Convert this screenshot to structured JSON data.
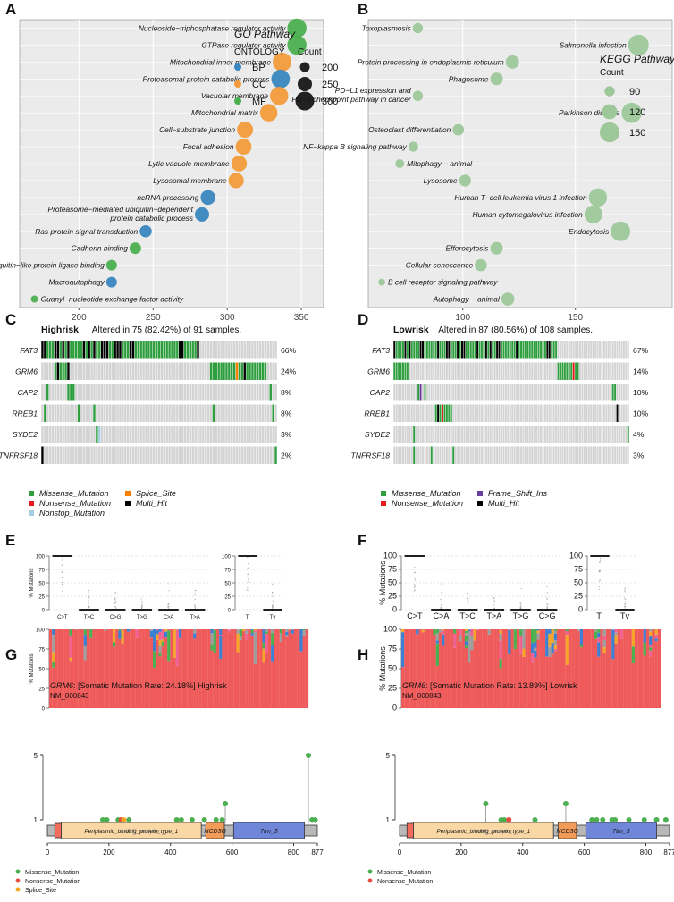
{
  "panel_labels": [
    "A",
    "B",
    "C",
    "D",
    "E",
    "F",
    "G",
    "H"
  ],
  "chart_data": [
    {
      "panel": "A",
      "type": "scatter",
      "xlim": [
        160,
        365
      ],
      "xticks": [
        200,
        250,
        300,
        350
      ],
      "legend_title": "GO Pathway",
      "ontology_title": "ONTOLOGY",
      "count_title": "Count",
      "ontology": [
        {
          "name": "BP",
          "color": "#3a87c0"
        },
        {
          "name": "CC",
          "color": "#f39b3a"
        },
        {
          "name": "MF",
          "color": "#4caf50"
        }
      ],
      "count_legend": [
        200,
        250,
        300
      ],
      "terms": [
        {
          "label": "Nucleoside−triphosphatase regulator activity",
          "x": 347,
          "count": 305,
          "ont": "MF"
        },
        {
          "label": "GTPase regulator activity",
          "x": 347,
          "count": 305,
          "ont": "MF"
        },
        {
          "label": "Mitochondrial inner membrane",
          "x": 337,
          "count": 300,
          "ont": "CC"
        },
        {
          "label": "Proteasomal protein catabolic process",
          "x": 336,
          "count": 298,
          "ont": "BP"
        },
        {
          "label": "Vacuolar membrane",
          "x": 335,
          "count": 295,
          "ont": "CC"
        },
        {
          "label": "Mitochondrial matrix",
          "x": 328,
          "count": 285,
          "ont": "CC"
        },
        {
          "label": "Cell−substrate junction",
          "x": 312,
          "count": 270,
          "ont": "CC"
        },
        {
          "label": "Focal adhesion",
          "x": 311,
          "count": 268,
          "ont": "CC"
        },
        {
          "label": "Lytic vacuole membrane",
          "x": 308,
          "count": 265,
          "ont": "CC"
        },
        {
          "label": "Lysosomal membrane",
          "x": 306,
          "count": 262,
          "ont": "CC"
        },
        {
          "label": "ncRNA processing",
          "x": 287,
          "count": 255,
          "ont": "BP"
        },
        {
          "label": "Proteasome−mediated ubiquitin−dependent",
          "label2": "protein catabolic process",
          "x": 283,
          "count": 250,
          "ont": "BP"
        },
        {
          "label": "Ras protein signal transduction",
          "x": 245,
          "count": 225,
          "ont": "BP"
        },
        {
          "label": "Cadherin binding",
          "x": 238,
          "count": 220,
          "ont": "MF"
        },
        {
          "label": "Ubiquitin−like protein ligase binding",
          "x": 222,
          "count": 210,
          "ont": "MF"
        },
        {
          "label": "Macroautophagy",
          "x": 222,
          "count": 210,
          "ont": "BP"
        },
        {
          "label": "Guanyl−nucleotide exchange factor activity",
          "x": 170,
          "count": 170,
          "ont": "MF"
        }
      ]
    },
    {
      "panel": "B",
      "type": "scatter",
      "xlim": [
        58,
        193
      ],
      "xticks": [
        100,
        150
      ],
      "legend_title": "KEGG Pathway",
      "count_title": "Count",
      "count_legend": [
        90,
        120,
        150
      ],
      "color": "#9dc89a",
      "terms": [
        {
          "label": "Toxoplasmosis",
          "x": 80,
          "count": 90
        },
        {
          "label": "Salmonella infection",
          "x": 178,
          "count": 155
        },
        {
          "label": "Protein processing in endoplasmic reticulum",
          "x": 122,
          "count": 110
        },
        {
          "label": "Phagosome",
          "x": 115,
          "count": 105
        },
        {
          "label": "PD−L1 expression and",
          "label2": "PD−1 checkpoint pathway in cancer",
          "x": 80,
          "count": 90
        },
        {
          "label": "Parkinson disease",
          "x": 175,
          "count": 152
        },
        {
          "label": "Osteoclast differentiation",
          "x": 98,
          "count": 98
        },
        {
          "label": "NF−kappa B signaling pathway",
          "x": 78,
          "count": 88
        },
        {
          "label": "Mitophagy − animal",
          "x": 72,
          "count": 82
        },
        {
          "label": "Lysosome",
          "x": 101,
          "count": 100
        },
        {
          "label": "Human T−cell leukemia virus 1 infection",
          "x": 160,
          "count": 140
        },
        {
          "label": "Human cytomegalovirus infection",
          "x": 158,
          "count": 138
        },
        {
          "label": "Endocytosis",
          "x": 170,
          "count": 148
        },
        {
          "label": "Efferocytosis",
          "x": 115,
          "count": 105
        },
        {
          "label": "Cellular senescence",
          "x": 108,
          "count": 102
        },
        {
          "label": "B cell receptor signaling pathway",
          "x": 64,
          "count": 70
        },
        {
          "label": "Autophagy − animal",
          "x": 120,
          "count": 108
        }
      ]
    },
    {
      "panel": "C",
      "type": "heatmap",
      "title_bold": "Highrisk",
      "title_rest": "Altered in 75 (82.42%) of 91 samples.",
      "n": 91,
      "genes": [
        "FAT3",
        "GRM6",
        "CAP2",
        "RREB1",
        "SYDE2",
        "TNFRSF18"
      ],
      "pcts": [
        "66%",
        "24%",
        "8%",
        "8%",
        "3%",
        "2%"
      ],
      "legend": [
        {
          "name": "Missense_Mutation",
          "color": "#2e9e3e"
        },
        {
          "name": "Nonsense_Mutation",
          "color": "#e41a1c"
        },
        {
          "name": "Nonstop_Mutation",
          "color": "#a6cee3"
        },
        {
          "name": "Splice_Site",
          "color": "#ff7f00"
        },
        {
          "name": "Multi_Hit",
          "color": "#000000"
        }
      ]
    },
    {
      "panel": "D",
      "type": "heatmap",
      "title_bold": "Lowrisk",
      "title_rest": "Altered in 87 (80.56%) of 108 samples.",
      "n": 108,
      "genes": [
        "FAT3",
        "GRM6",
        "CAP2",
        "RREB1",
        "SYDE2",
        "TNFRSF18"
      ],
      "pcts": [
        "67%",
        "14%",
        "10%",
        "10%",
        "4%",
        "3%"
      ],
      "legend": [
        {
          "name": "Missense_Mutation",
          "color": "#2e9e3e"
        },
        {
          "name": "Nonsense_Mutation",
          "color": "#e41a1c"
        },
        {
          "name": "Frame_Shift_Ins",
          "color": "#6a3d9a"
        },
        {
          "name": "Multi_Hit",
          "color": "#000000"
        }
      ]
    },
    {
      "panel": "E",
      "type": "box",
      "ylabel": "% Mutations",
      "yticks": [
        0,
        25,
        50,
        75,
        100
      ],
      "categories": [
        "C>T",
        "T>C",
        "C>G",
        "T>G",
        "C>A",
        "T>A"
      ],
      "medians": [
        100,
        0,
        0,
        0,
        0,
        0
      ],
      "titv": [
        "Ti",
        "Tv"
      ],
      "titv_medians": [
        100,
        0
      ]
    },
    {
      "panel": "F",
      "type": "box",
      "ylabel": "% Mutations",
      "yticks": [
        0,
        25,
        50,
        75,
        100
      ],
      "categories": [
        "C>T",
        "C>A",
        "T>C",
        "T>A",
        "T>G",
        "C>G"
      ],
      "medians": [
        100,
        0,
        0,
        0,
        0,
        0
      ],
      "titv": [
        "Ti",
        "Tv"
      ],
      "titv_medians": [
        100,
        0
      ]
    },
    {
      "panel": "G",
      "type": "lollipop",
      "gene": "GRM6",
      "title_rest": ": [Somatic Mutation Rate: 24.18%] Highrisk",
      "transcript": "NM_000843",
      "xlim": [
        0,
        877
      ],
      "xticks": [
        "0",
        "200",
        "400",
        "600",
        "800",
        "877"
      ],
      "yticks": [
        "1",
        "5"
      ],
      "domains": [
        {
          "name": "Periplasmic_binding_protein_type_1",
          "overlap": "ANF_receptor",
          "start": 45,
          "end": 500
        },
        {
          "name": "NCD3G",
          "start": 515,
          "end": 575
        },
        {
          "name": "7tm_3",
          "start": 605,
          "end": 835
        }
      ],
      "mutations": [
        {
          "pos": 180,
          "count": 1,
          "type": "Missense_Mutation"
        },
        {
          "pos": 193,
          "count": 1,
          "type": "Missense_Mutation"
        },
        {
          "pos": 230,
          "count": 1,
          "type": "Missense_Mutation"
        },
        {
          "pos": 240,
          "count": 1,
          "type": "Nonsense_Mutation"
        },
        {
          "pos": 248,
          "count": 1,
          "type": "Splice_Site"
        },
        {
          "pos": 265,
          "count": 1,
          "type": "Missense_Mutation"
        },
        {
          "pos": 420,
          "count": 1,
          "type": "Missense_Mutation"
        },
        {
          "pos": 435,
          "count": 1,
          "type": "Missense_Mutation"
        },
        {
          "pos": 470,
          "count": 1,
          "type": "Missense_Mutation"
        },
        {
          "pos": 510,
          "count": 1,
          "type": "Missense_Mutation"
        },
        {
          "pos": 548,
          "count": 1,
          "type": "Missense_Mutation"
        },
        {
          "pos": 568,
          "count": 1,
          "type": "Missense_Mutation"
        },
        {
          "pos": 578,
          "count": 2,
          "type": "Missense_Mutation"
        },
        {
          "pos": 848,
          "count": 5,
          "type": "Missense_Mutation"
        },
        {
          "pos": 860,
          "count": 1,
          "type": "Missense_Mutation"
        },
        {
          "pos": 870,
          "count": 1,
          "type": "Missense_Mutation"
        }
      ],
      "legend": [
        {
          "name": "Missense_Mutation",
          "color": "#4caf50"
        },
        {
          "name": "Nonsense_Mutation",
          "color": "#e74c3c"
        },
        {
          "name": "Splice_Site",
          "color": "#f5a623"
        }
      ]
    },
    {
      "panel": "H",
      "type": "lollipop",
      "gene": "GRM6",
      "title_rest": ": [Somatic Mutation Rate: 13.89%] Lowrisk",
      "transcript": "NM_000843",
      "xlim": [
        0,
        877
      ],
      "xticks": [
        "0",
        "200",
        "400",
        "600",
        "800",
        "877"
      ],
      "yticks": [
        "1",
        "5"
      ],
      "domains": [
        {
          "name": "Periplasmic_binding_protein_type_1",
          "overlap": "ANF_receptor",
          "start": 45,
          "end": 500
        },
        {
          "name": "NCD3G",
          "start": 515,
          "end": 575
        },
        {
          "name": "7tm_3",
          "start": 605,
          "end": 835
        }
      ],
      "mutations": [
        {
          "pos": 280,
          "count": 2,
          "type": "Missense_Mutation"
        },
        {
          "pos": 330,
          "count": 1,
          "type": "Missense_Mutation"
        },
        {
          "pos": 340,
          "count": 1,
          "type": "Missense_Mutation"
        },
        {
          "pos": 355,
          "count": 1,
          "type": "Nonsense_Mutation"
        },
        {
          "pos": 440,
          "count": 1,
          "type": "Missense_Mutation"
        },
        {
          "pos": 540,
          "count": 2,
          "type": "Missense_Mutation"
        },
        {
          "pos": 625,
          "count": 1,
          "type": "Missense_Mutation"
        },
        {
          "pos": 640,
          "count": 1,
          "type": "Missense_Mutation"
        },
        {
          "pos": 660,
          "count": 1,
          "type": "Missense_Mutation"
        },
        {
          "pos": 690,
          "count": 1,
          "type": "Missense_Mutation"
        },
        {
          "pos": 700,
          "count": 1,
          "type": "Missense_Mutation"
        },
        {
          "pos": 745,
          "count": 1,
          "type": "Missense_Mutation"
        },
        {
          "pos": 795,
          "count": 1,
          "type": "Missense_Mutation"
        },
        {
          "pos": 835,
          "count": 1,
          "type": "Missense_Mutation"
        },
        {
          "pos": 865,
          "count": 1,
          "type": "Missense_Mutation"
        }
      ],
      "legend": [
        {
          "name": "Missense_Mutation",
          "color": "#4caf50"
        },
        {
          "name": "Nonsense_Mutation",
          "color": "#e74c3c"
        }
      ]
    }
  ]
}
